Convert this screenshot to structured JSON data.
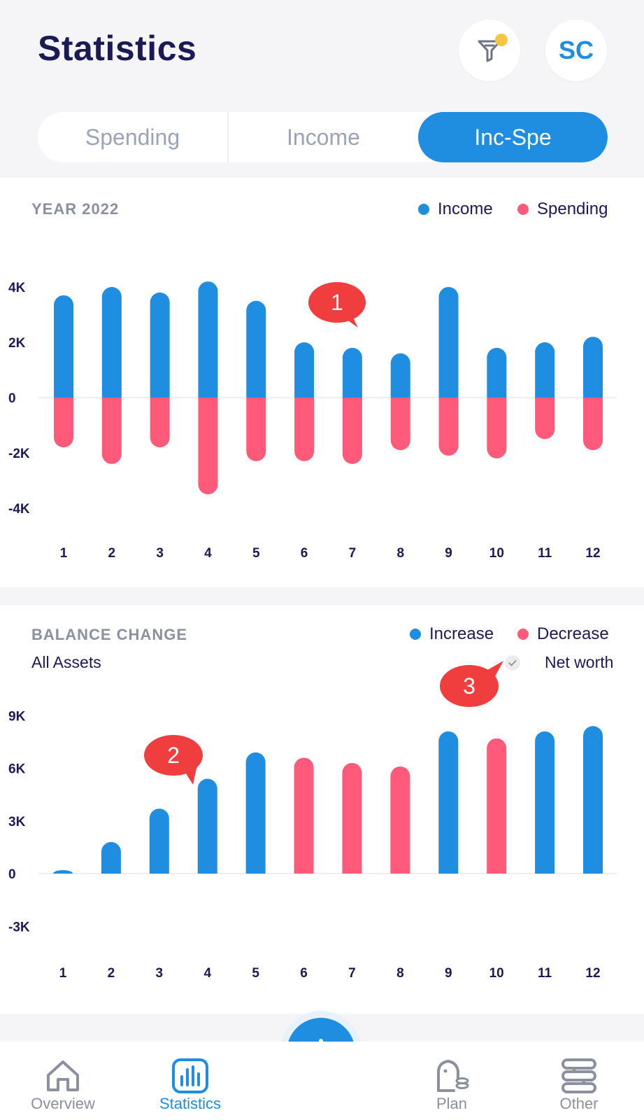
{
  "header": {
    "title": "Statistics",
    "avatar_initials": "SC"
  },
  "tabs": [
    {
      "label": "Spending",
      "active": false
    },
    {
      "label": "Income",
      "active": false
    },
    {
      "label": "Inc-Spe",
      "active": true
    }
  ],
  "chart1": {
    "title": "YEAR 2022",
    "legend": [
      {
        "label": "Income",
        "color": "#1f8de0"
      },
      {
        "label": "Spending",
        "color": "#ff5a7a"
      }
    ]
  },
  "chart2": {
    "title": "BALANCE CHANGE",
    "subtitle": "All Assets",
    "legend": [
      {
        "label": "Increase",
        "color": "#1f8de0"
      },
      {
        "label": "Decrease",
        "color": "#ff5a7a"
      }
    ],
    "net_worth_label": "Net worth"
  },
  "callouts": [
    "1",
    "2",
    "3"
  ],
  "chart_data": [
    {
      "type": "bar",
      "title": "YEAR 2022",
      "categories": [
        "1",
        "2",
        "3",
        "4",
        "5",
        "6",
        "7",
        "8",
        "9",
        "10",
        "11",
        "12"
      ],
      "series": [
        {
          "name": "Income",
          "color": "#1f8de0",
          "values": [
            3700,
            4000,
            3800,
            4200,
            3500,
            2000,
            1800,
            1600,
            4000,
            1800,
            2000,
            2200
          ]
        },
        {
          "name": "Spending",
          "color": "#ff5a7a",
          "values": [
            -1800,
            -2400,
            -1800,
            -3500,
            -2300,
            -2300,
            -2400,
            -1900,
            -2100,
            -2200,
            -1500,
            -1900
          ]
        }
      ],
      "yticks": [
        "4K",
        "2K",
        "0",
        "-2K",
        "-4K"
      ],
      "ylim": [
        -4000,
        4000
      ]
    },
    {
      "type": "bar",
      "title": "BALANCE CHANGE",
      "categories": [
        "1",
        "2",
        "3",
        "4",
        "5",
        "6",
        "7",
        "8",
        "9",
        "10",
        "11",
        "12"
      ],
      "series": [
        {
          "name": "Balance",
          "values": [
            200,
            1800,
            3700,
            5400,
            6900,
            6600,
            6300,
            6100,
            8100,
            7700,
            8100,
            8400
          ],
          "colors": [
            "#1f8de0",
            "#1f8de0",
            "#1f8de0",
            "#1f8de0",
            "#1f8de0",
            "#ff5a7a",
            "#ff5a7a",
            "#ff5a7a",
            "#1f8de0",
            "#ff5a7a",
            "#1f8de0",
            "#1f8de0"
          ]
        }
      ],
      "yticks": [
        "9K",
        "6K",
        "3K",
        "0",
        "-3K"
      ],
      "ylim": [
        -3000,
        9000
      ]
    }
  ],
  "nav": [
    {
      "label": "Overview",
      "icon": "home-icon",
      "active": false
    },
    {
      "label": "Statistics",
      "icon": "bar-chart-icon",
      "active": true
    },
    {
      "label": "Plan",
      "icon": "piggy-bank-icon",
      "active": false
    },
    {
      "label": "Other",
      "icon": "menu-grid-icon",
      "active": false
    }
  ],
  "colors": {
    "accent": "#1f8de0",
    "negative": "#ff5a7a",
    "title": "#1c1a55",
    "muted": "#8b909f"
  }
}
